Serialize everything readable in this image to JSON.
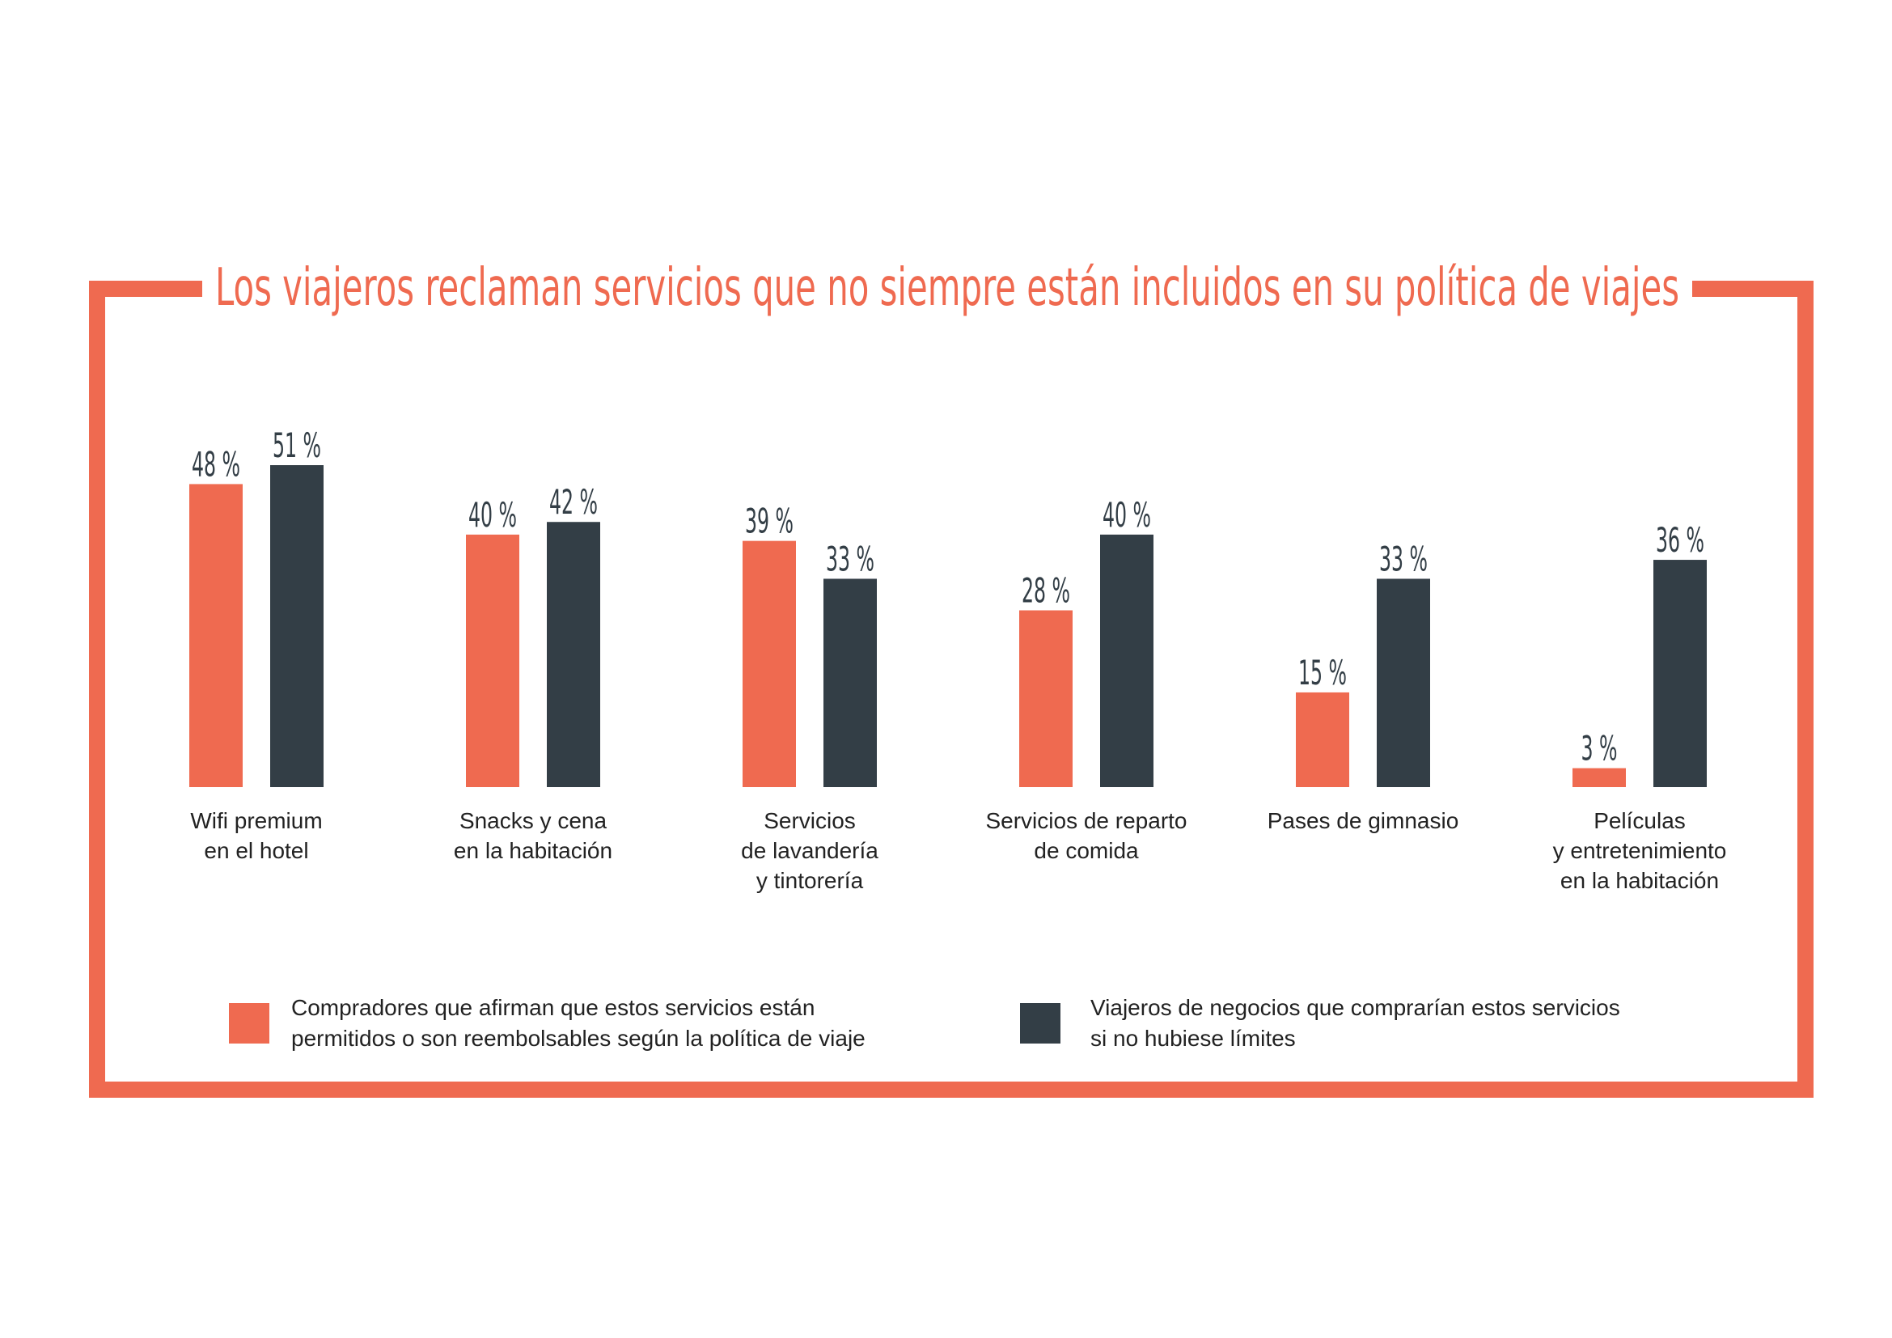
{
  "colors": {
    "accent": "#ef6a50",
    "dark": "#333e46",
    "text": "#222222",
    "background": "#ffffff"
  },
  "chart_data": {
    "type": "bar",
    "title": "Los viajeros reclaman servicios que no siempre están incluidos en su política de viajes",
    "categories": [
      [
        "Wifi premium",
        "en el hotel"
      ],
      [
        "Snacks y cena",
        "en la habitación"
      ],
      [
        "Servicios",
        "de lavandería",
        "y tintorería"
      ],
      [
        "Servicios de reparto",
        "de comida"
      ],
      [
        "Pases de gimnasio"
      ],
      [
        "Películas",
        "y entretenimiento",
        "en la habitación"
      ]
    ],
    "series": [
      {
        "name": "Compradores que afirman que estos servicios están permitidos o son reembolsables según la política de viaje",
        "legend_lines": [
          "Compradores que afirman que estos servicios están",
          "permitidos o son reembolsables según la política de viaje"
        ],
        "color": "#ef6a50",
        "values": [
          48,
          40,
          39,
          28,
          15,
          3
        ]
      },
      {
        "name": "Viajeros de negocios que comprarían estos servicios si no hubiese límites",
        "legend_lines": [
          "Viajeros de negocios que comprarían estos servicios",
          "si no hubiese límites"
        ],
        "color": "#333e46",
        "values": [
          51,
          42,
          33,
          40,
          33,
          36
        ]
      }
    ],
    "value_suffix": " %",
    "ylim": [
      0,
      51
    ],
    "grid": false,
    "legend_position": "bottom"
  }
}
